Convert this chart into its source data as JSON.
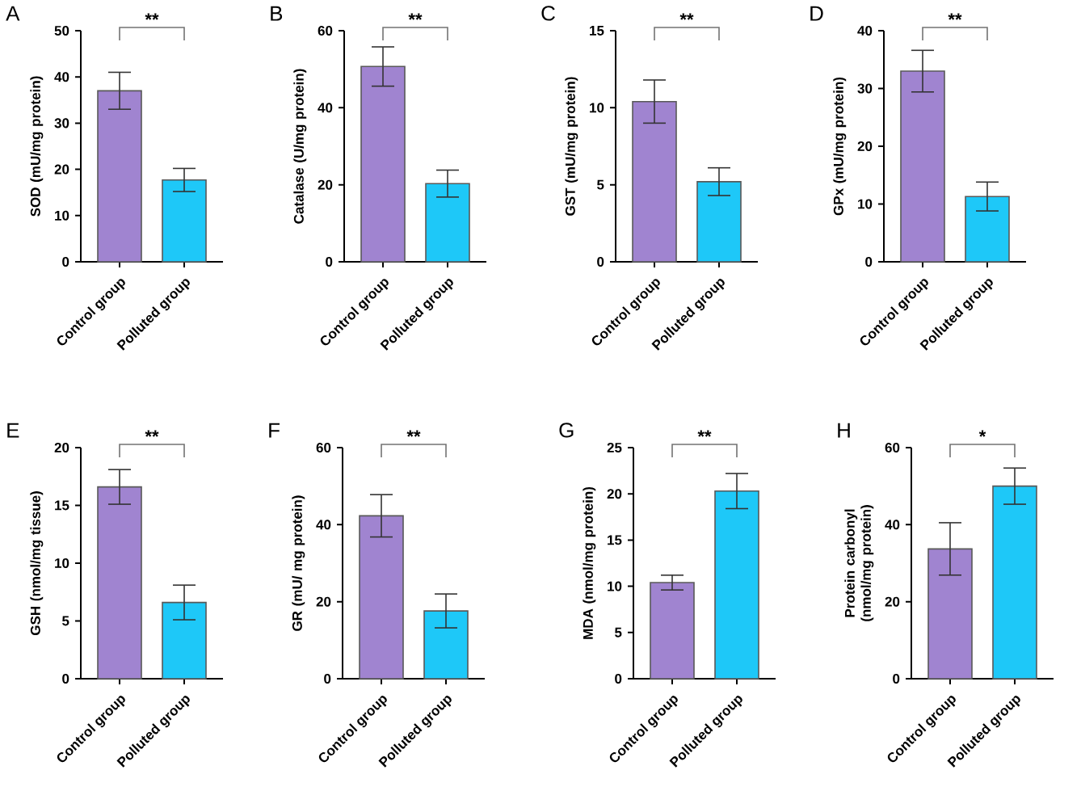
{
  "chart_data": [
    {
      "type": "bar",
      "title": "A",
      "ylabel": "SOD (mU/mg protein)",
      "categories": [
        "Control group",
        "Polluted group"
      ],
      "values": [
        37,
        17.7
      ],
      "errors": [
        4,
        2.5
      ],
      "colors": [
        "#a084d0",
        "#1ec8f8"
      ],
      "ylim": [
        0,
        50
      ],
      "yticks": [
        0,
        10,
        20,
        30,
        40,
        50
      ],
      "annotations": [
        "**"
      ]
    },
    {
      "type": "bar",
      "title": "B",
      "ylabel": "Catalase (U/mg protein)",
      "categories": [
        "Control group",
        "Polluted group"
      ],
      "values": [
        50.7,
        20.3
      ],
      "errors": [
        5.1,
        3.5
      ],
      "colors": [
        "#a084d0",
        "#1ec8f8"
      ],
      "ylim": [
        0,
        60
      ],
      "yticks": [
        0,
        20,
        40,
        60
      ],
      "annotations": [
        "**"
      ]
    },
    {
      "type": "bar",
      "title": "C",
      "ylabel": "GST (mU/mg protein)",
      "categories": [
        "Control group",
        "Polluted group"
      ],
      "values": [
        10.4,
        5.2
      ],
      "errors": [
        1.4,
        0.9
      ],
      "colors": [
        "#a084d0",
        "#1ec8f8"
      ],
      "ylim": [
        0,
        15
      ],
      "yticks": [
        0,
        5,
        10,
        15
      ],
      "annotations": [
        "**"
      ]
    },
    {
      "type": "bar",
      "title": "D",
      "ylabel": "GPx (mU/mg protein)",
      "categories": [
        "Control group",
        "Polluted group"
      ],
      "values": [
        33,
        11.3
      ],
      "errors": [
        3.6,
        2.5
      ],
      "colors": [
        "#a084d0",
        "#1ec8f8"
      ],
      "ylim": [
        0,
        40
      ],
      "yticks": [
        0,
        10,
        20,
        30,
        40
      ],
      "annotations": [
        "**"
      ]
    },
    {
      "type": "bar",
      "title": "E",
      "ylabel": "GSH (nmol/mg tissue)",
      "categories": [
        "Control group",
        "Polluted group"
      ],
      "values": [
        16.6,
        6.6
      ],
      "errors": [
        1.5,
        1.5
      ],
      "colors": [
        "#a084d0",
        "#1ec8f8"
      ],
      "ylim": [
        0,
        20
      ],
      "yticks": [
        0,
        5,
        10,
        15,
        20
      ],
      "annotations": [
        "**"
      ]
    },
    {
      "type": "bar",
      "title": "F",
      "ylabel": "GR (mU/ mg protein)",
      "categories": [
        "Control group",
        "Polluted group"
      ],
      "values": [
        42.3,
        17.6
      ],
      "errors": [
        5.5,
        4.4
      ],
      "colors": [
        "#a084d0",
        "#1ec8f8"
      ],
      "ylim": [
        0,
        60
      ],
      "yticks": [
        0,
        20,
        40,
        60
      ],
      "annotations": [
        "**"
      ]
    },
    {
      "type": "bar",
      "title": "G",
      "ylabel": "MDA (nmol/mg protein)",
      "categories": [
        "Control group",
        "Polluted group"
      ],
      "values": [
        10.4,
        20.3
      ],
      "errors": [
        0.8,
        1.9
      ],
      "colors": [
        "#a084d0",
        "#1ec8f8"
      ],
      "ylim": [
        0,
        25
      ],
      "yticks": [
        0,
        5,
        10,
        15,
        20,
        25
      ],
      "annotations": [
        "**"
      ]
    },
    {
      "type": "bar",
      "title": "H",
      "ylabel": "Protein carbonyl (nmol/mg protein)",
      "categories": [
        "Control group",
        "Polluted group"
      ],
      "values": [
        33.7,
        50
      ],
      "errors": [
        6.8,
        4.7
      ],
      "colors": [
        "#a084d0",
        "#1ec8f8"
      ],
      "ylim": [
        0,
        60
      ],
      "yticks": [
        0,
        20,
        40,
        60
      ],
      "annotations": [
        "*"
      ]
    }
  ]
}
